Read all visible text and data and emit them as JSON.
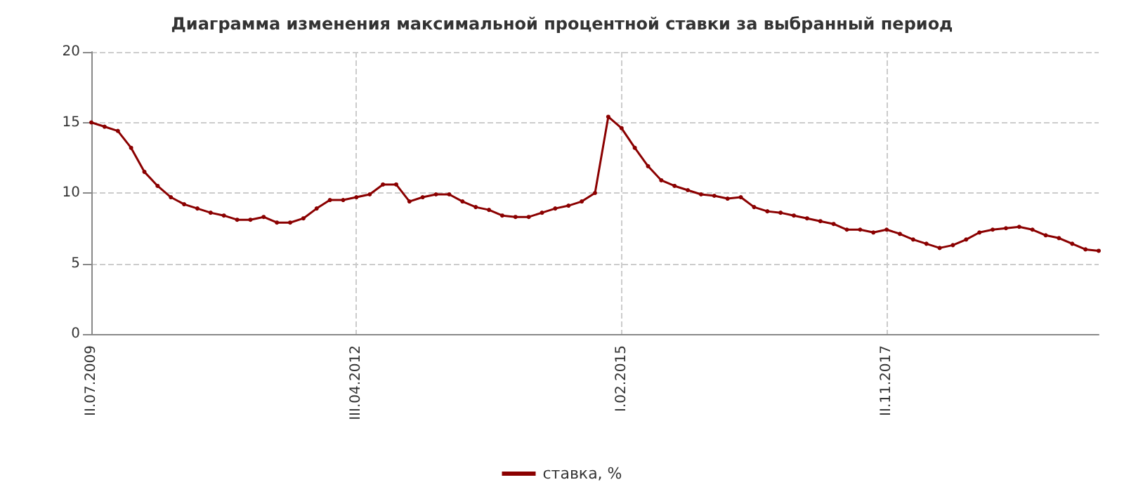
{
  "chart_data": {
    "type": "line",
    "title": "Диаграмма изменения максимальной процентной ставки за выбранный период",
    "categories": [
      "II.07.2009",
      null,
      null,
      null,
      null,
      null,
      null,
      null,
      null,
      null,
      null,
      null,
      null,
      null,
      null,
      null,
      null,
      null,
      null,
      null,
      "III.04.2012",
      null,
      null,
      null,
      null,
      null,
      null,
      null,
      null,
      null,
      null,
      null,
      null,
      null,
      null,
      null,
      null,
      null,
      null,
      null,
      "I.02.2015",
      null,
      null,
      null,
      null,
      null,
      null,
      null,
      null,
      null,
      null,
      null,
      null,
      null,
      null,
      null,
      null,
      null,
      null,
      null,
      "II.11.2017",
      null,
      null,
      null,
      null,
      null,
      null,
      null,
      null,
      null,
      null,
      null,
      null,
      null,
      null,
      null,
      null
    ],
    "series": [
      {
        "name": "ставка, %",
        "color": "#8b0000",
        "values": [
          15.0,
          14.7,
          14.4,
          13.2,
          11.5,
          10.5,
          9.7,
          9.2,
          8.9,
          8.6,
          8.4,
          8.1,
          8.1,
          8.3,
          7.9,
          7.9,
          8.2,
          8.9,
          9.5,
          9.5,
          9.7,
          9.9,
          10.6,
          10.6,
          9.4,
          9.7,
          9.9,
          9.9,
          9.4,
          9.0,
          8.8,
          8.4,
          8.3,
          8.3,
          8.6,
          8.9,
          9.1,
          9.4,
          10.0,
          15.4,
          14.6,
          13.2,
          11.9,
          10.9,
          10.5,
          10.2,
          9.9,
          9.8,
          9.6,
          9.7,
          9.0,
          8.7,
          8.6,
          8.4,
          8.2,
          8.0,
          7.8,
          7.4,
          7.4,
          7.2,
          7.4,
          7.1,
          6.7,
          6.4,
          6.1,
          6.3,
          6.7,
          7.2,
          7.4,
          7.5,
          7.6,
          7.4,
          7.0,
          6.8,
          6.4,
          6.0,
          5.9
        ]
      }
    ],
    "ylim": [
      0,
      20
    ],
    "yticks": [
      0,
      5,
      10,
      15,
      20
    ],
    "grid": true,
    "legend": "bottom",
    "marker": "circle",
    "line_style": "solid"
  }
}
